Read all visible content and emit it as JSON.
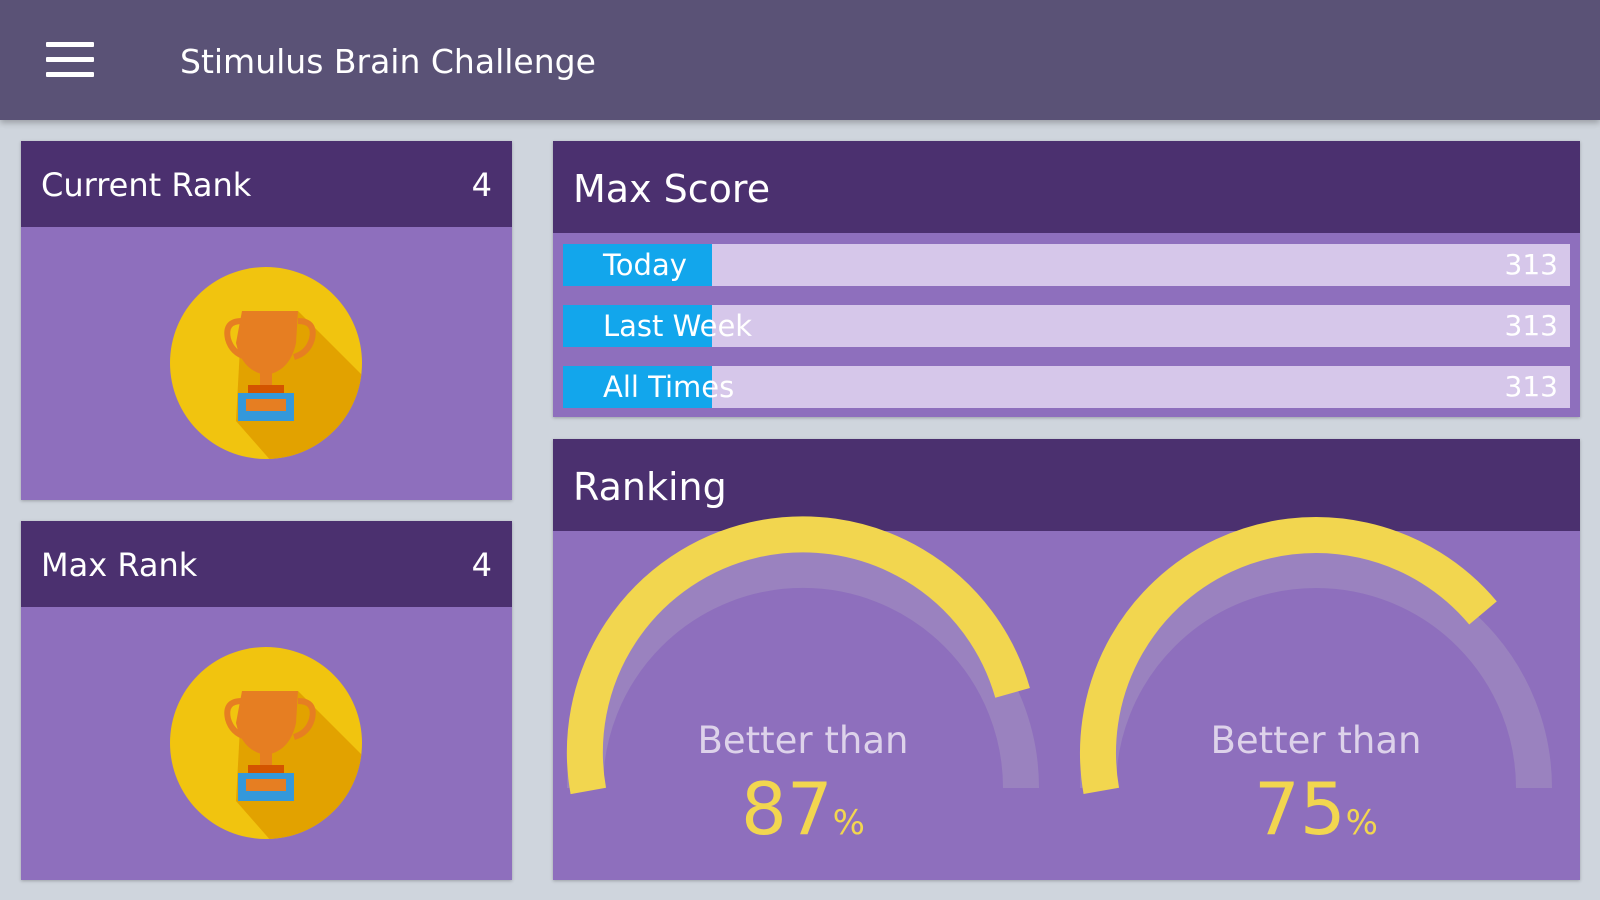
{
  "app": {
    "title": "Stimulus Brain Challenge",
    "menu_icon": "hamburger-menu-icon"
  },
  "current_rank": {
    "label": "Current Rank",
    "value": "4",
    "icon": "trophy-icon"
  },
  "max_rank": {
    "label": "Max Rank",
    "value": "4",
    "icon": "trophy-icon"
  },
  "max_score": {
    "title": "Max Score",
    "rows": [
      {
        "label": "Today",
        "value": "313",
        "fill_fraction": 0.148
      },
      {
        "label": "Last Week",
        "value": "313",
        "fill_fraction": 0.148
      },
      {
        "label": "All Times",
        "value": "313",
        "fill_fraction": 0.148
      }
    ]
  },
  "ranking": {
    "title": "Ranking",
    "gauges": [
      {
        "caption": "Better than",
        "value": "87",
        "unit": "%",
        "percent": 87
      },
      {
        "caption": "Better than",
        "value": "75",
        "unit": "%",
        "percent": 75
      }
    ]
  },
  "colors": {
    "background": "#cfd5dd",
    "appbar": "#5a5276",
    "card_header": "#4b306f",
    "card_body": "#8e6fbd",
    "bar_track": "#d6c7ea",
    "bar_fill": "#12a6ec",
    "gauge_fill": "#f2d64f",
    "gauge_track": "#9a82bf",
    "trophy_circle": "#f1c40f"
  }
}
